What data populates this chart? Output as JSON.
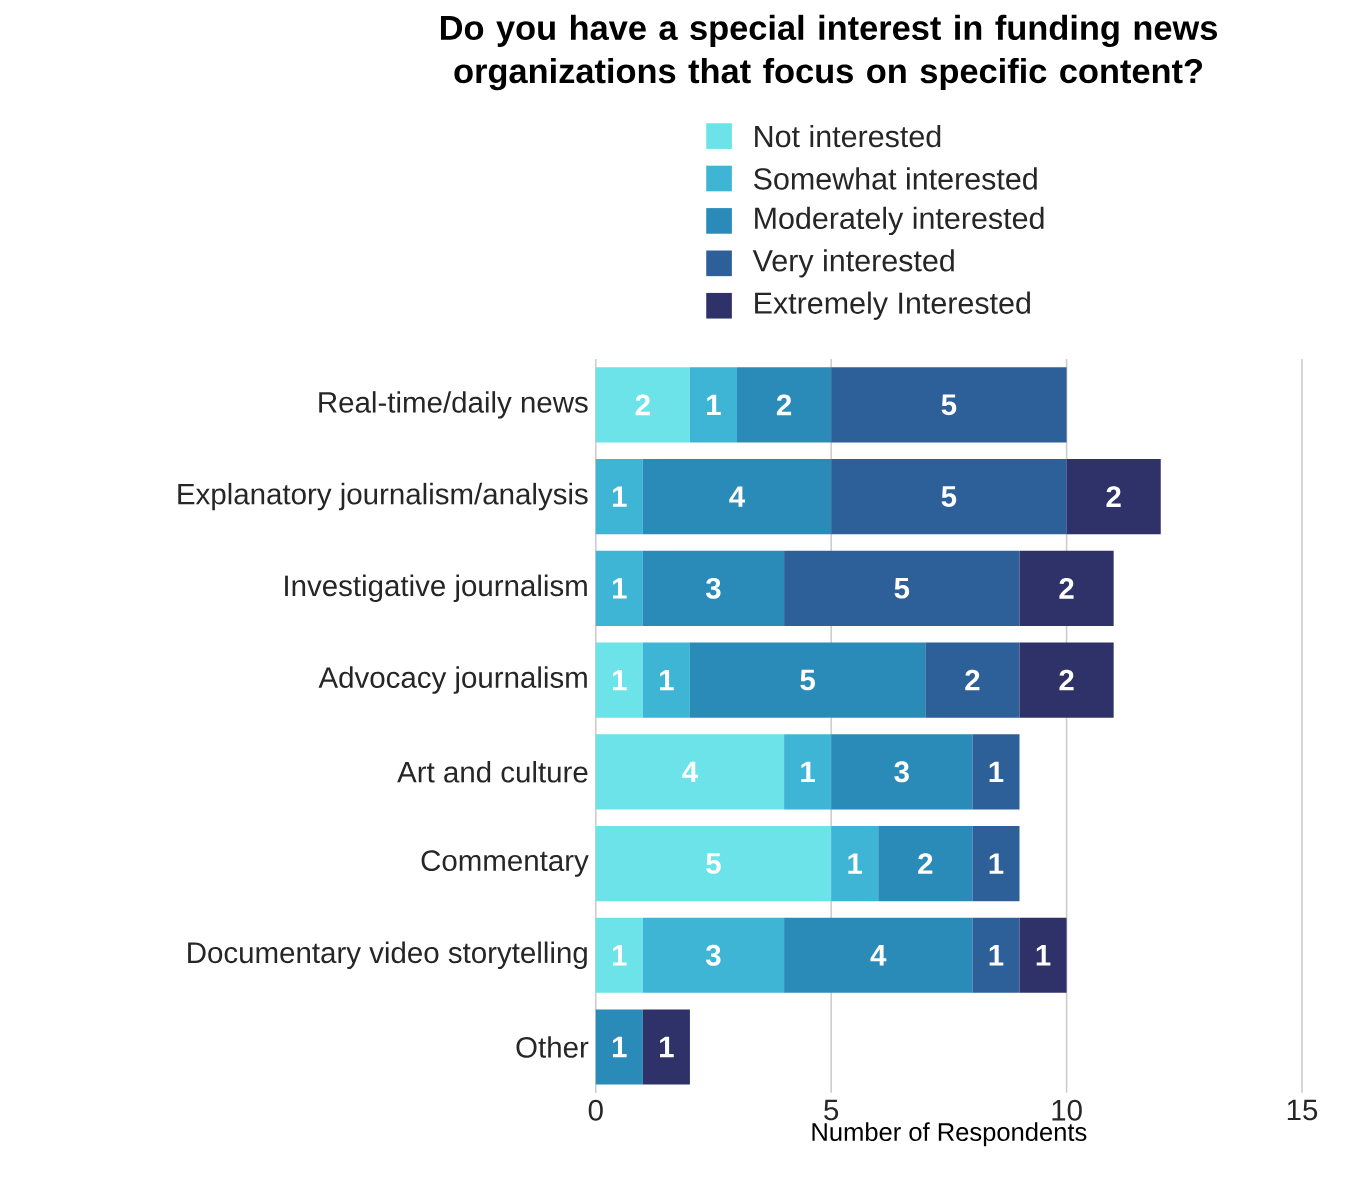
{
  "chart_data": {
    "type": "bar",
    "orientation": "horizontal",
    "stacked": true,
    "title": "Do you have a special interest in funding news organizations that focus on specific content?",
    "xlabel": "Number of Respondents",
    "categories": [
      "Real-time/daily news",
      "Explanatory journalism/analysis",
      "Investigative journalism",
      "Advocacy journalism",
      "Art and culture",
      "Commentary",
      "Documentary video storytelling",
      "Other"
    ],
    "series": [
      {
        "name": "Not interested",
        "color": "#6ce3e8",
        "values": [
          2,
          null,
          null,
          1,
          4,
          5,
          1,
          null
        ]
      },
      {
        "name": "Somewhat interested",
        "color": "#3fb5d6",
        "values": [
          1,
          1,
          1,
          1,
          1,
          1,
          3,
          null
        ]
      },
      {
        "name": "Moderately interested",
        "color": "#2b8bb8",
        "values": [
          2,
          4,
          3,
          5,
          3,
          2,
          4,
          1
        ]
      },
      {
        "name": "Very interested",
        "color": "#2d5f98",
        "values": [
          5,
          5,
          5,
          2,
          1,
          1,
          1,
          null
        ]
      },
      {
        "name": "Extremely Interested",
        "color": "#2f3268",
        "values": [
          null,
          2,
          2,
          2,
          null,
          null,
          1,
          1
        ]
      }
    ],
    "xlim": [
      0,
      15
    ],
    "xticks": [
      0,
      5,
      10,
      15
    ],
    "grid": "x",
    "legend": "top",
    "data_labels": true
  }
}
